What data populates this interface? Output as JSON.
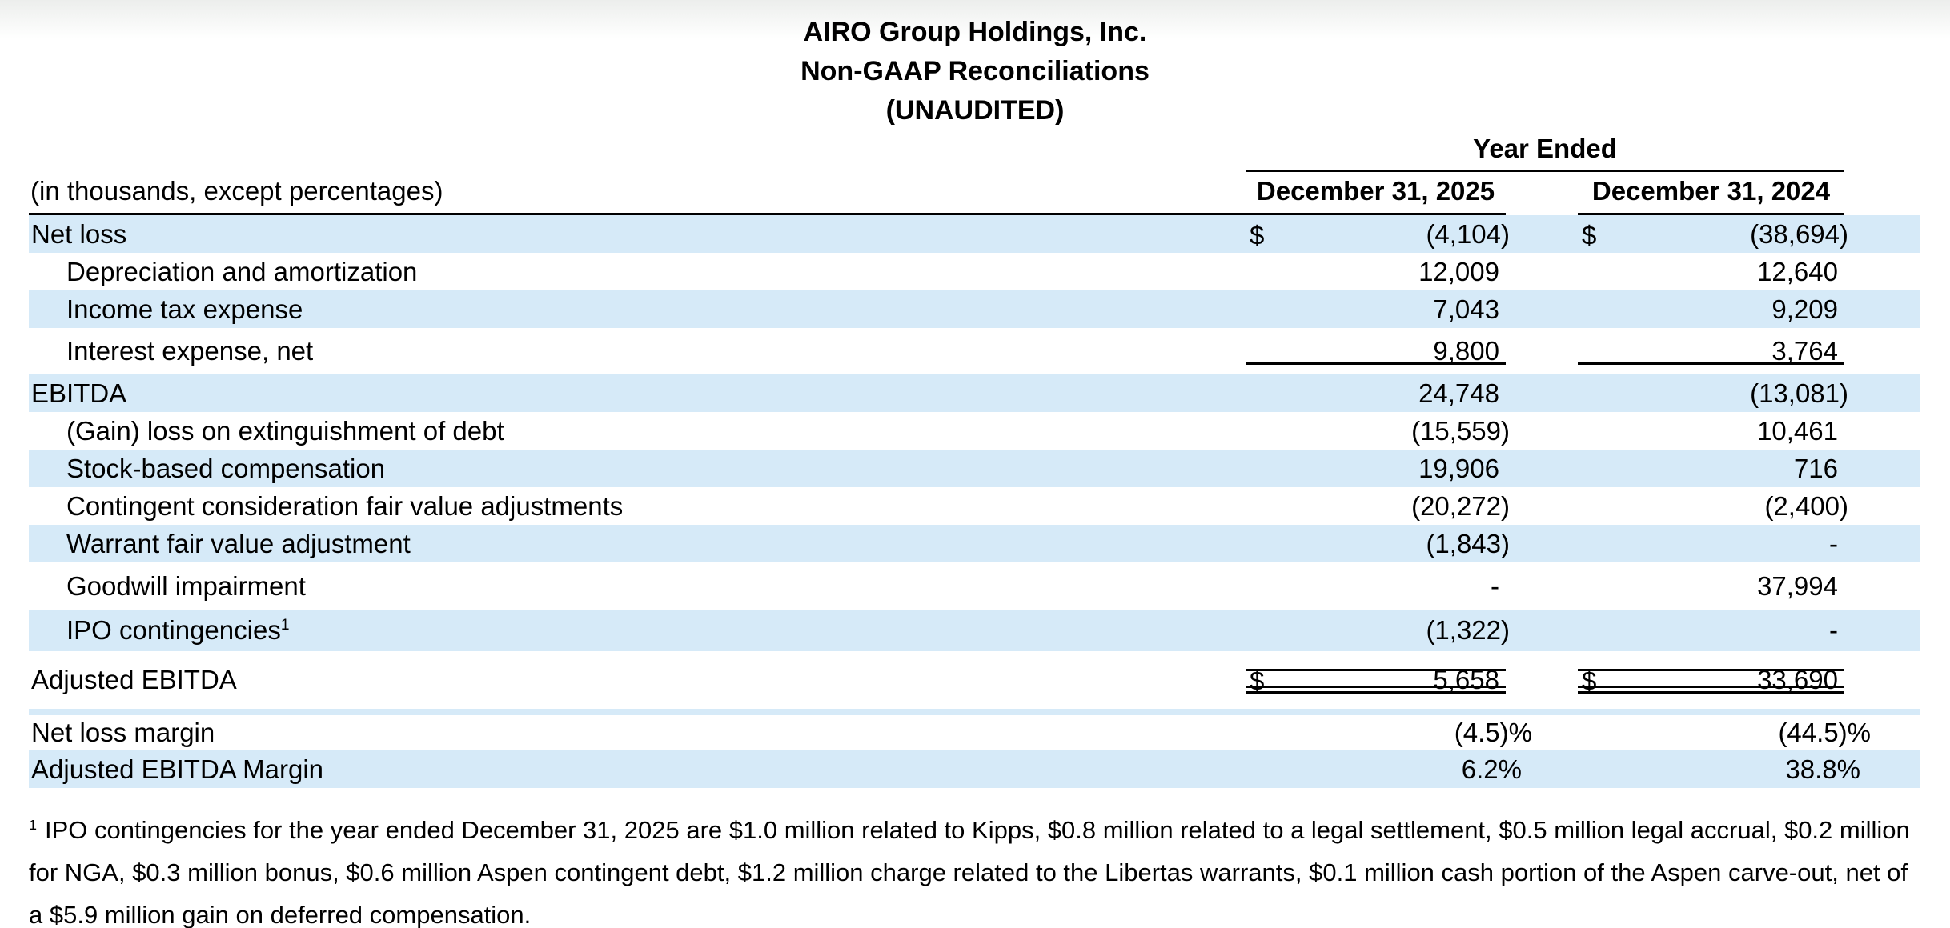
{
  "title": {
    "line1": "AIRO Group Holdings, Inc.",
    "line2": "Non-GAAP Reconciliations",
    "line3": "(UNAUDITED)"
  },
  "table": {
    "period_header": "Year Ended",
    "units_note": "(in thousands, except percentages)",
    "columns": [
      "December 31, 2025",
      "December 31, 2024"
    ],
    "currency_symbol": "$",
    "rows": [
      {
        "label": "Net loss",
        "indent": false,
        "highlight": true,
        "dollar": true,
        "values": [
          "(4,104)",
          "(38,694)"
        ],
        "variant": null
      },
      {
        "label": "Depreciation and amortization",
        "indent": true,
        "highlight": false,
        "dollar": false,
        "values": [
          "12,009",
          "12,640"
        ],
        "variant": null
      },
      {
        "label": "Income tax expense",
        "indent": true,
        "highlight": true,
        "dollar": false,
        "values": [
          "7,043",
          "9,209"
        ],
        "variant": null
      },
      {
        "label": "Interest expense, net",
        "indent": true,
        "highlight": false,
        "dollar": false,
        "values": [
          "9,800",
          "3,764"
        ],
        "variant": "rule",
        "rule": "bottom"
      },
      {
        "label": "EBITDA",
        "indent": false,
        "highlight": true,
        "dollar": false,
        "values": [
          "24,748",
          "(13,081)"
        ],
        "variant": null
      },
      {
        "label": "(Gain) loss on extinguishment of debt",
        "indent": true,
        "highlight": false,
        "dollar": false,
        "values": [
          "(15,559)",
          "10,461"
        ],
        "variant": null
      },
      {
        "label": "Stock-based compensation",
        "indent": true,
        "highlight": true,
        "dollar": false,
        "values": [
          "19,906",
          "716"
        ],
        "variant": null
      },
      {
        "label": "Contingent consideration fair value adjustments",
        "indent": true,
        "highlight": false,
        "dollar": false,
        "values": [
          "(20,272)",
          "(2,400)"
        ],
        "variant": null
      },
      {
        "label": "Warrant fair value adjustment",
        "indent": true,
        "highlight": true,
        "dollar": false,
        "values": [
          "(1,843)",
          "-"
        ],
        "variant": null
      },
      {
        "label": "Goodwill impairment",
        "indent": true,
        "highlight": false,
        "dollar": false,
        "values": [
          "-",
          "37,994"
        ],
        "variant": "tall"
      },
      {
        "label": "IPO contingencies",
        "sup": "1",
        "indent": true,
        "highlight": true,
        "dollar": false,
        "values": [
          "(1,322)",
          "-"
        ],
        "variant": "ipo"
      },
      {
        "label": "Adjusted EBITDA",
        "indent": false,
        "highlight": false,
        "dollar": true,
        "values": [
          "5,658",
          "33,690"
        ],
        "variant": "total",
        "rule": "top-and-double"
      },
      {
        "label": "",
        "indent": false,
        "highlight": true,
        "dollar": false,
        "values": [
          "",
          ""
        ],
        "variant": "thin"
      },
      {
        "label": "Net loss margin",
        "indent": false,
        "highlight": false,
        "dollar": false,
        "values": [
          "(4.5)%",
          "(44.5)%"
        ],
        "variant": "m1"
      },
      {
        "label": "Adjusted EBITDA Margin",
        "indent": false,
        "highlight": true,
        "dollar": false,
        "values": [
          "6.2%",
          "38.8%"
        ],
        "variant": null
      }
    ]
  },
  "footnote": {
    "marker": "1",
    "text": "IPO contingencies for the year ended December 31, 2025 are $1.0 million related to Kipps, $0.8 million related to a legal settlement, $0.5 million legal accrual, $0.2 million for NGA, $0.3 million bonus, $0.6 million Aspen contingent debt, $1.2 million charge related to the Libertas warrants, $0.1 million cash portion of the Aspen carve-out, net of a $5.9 million gain on deferred compensation."
  },
  "colors": {
    "row_highlight": "#d6eaf8",
    "rule": "#000000",
    "text": "#000000",
    "top_fade": "#eceeec"
  }
}
